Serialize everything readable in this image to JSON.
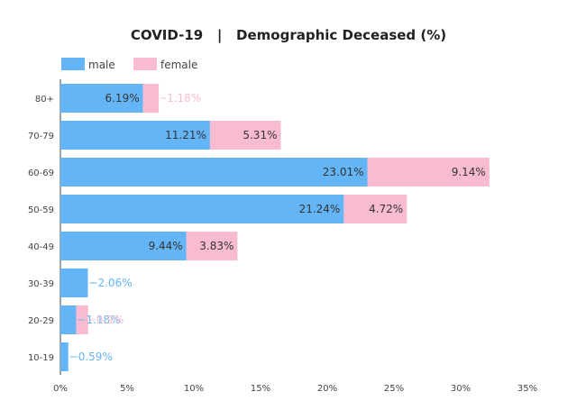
{
  "chart_data": {
    "type": "bar",
    "orientation": "horizontal",
    "stacked": true,
    "title": "COVID-19   |   Demographic Deceased (%)",
    "categories": [
      "80+",
      "70-79",
      "60-69",
      "50-59",
      "40-49",
      "30-39",
      "20-29",
      "10-19"
    ],
    "series": [
      {
        "name": "male",
        "color": "#64b5f6",
        "values": [
          6.19,
          11.21,
          23.01,
          21.24,
          9.44,
          2.06,
          1.18,
          0.59
        ],
        "labels": [
          "6.19%",
          "11.21%",
          "23.01%",
          "21.24%",
          "9.44%",
          "2.06%",
          "1.18%",
          "0.59%"
        ]
      },
      {
        "name": "female",
        "color": "#f8bbd0",
        "values": [
          1.18,
          5.31,
          9.14,
          4.72,
          3.83,
          0,
          0.9,
          0
        ],
        "labels": [
          "1.18%",
          "5.31%",
          "9.14%",
          "4.72%",
          "3.83%",
          "",
          "0.9%",
          ""
        ]
      }
    ],
    "xlim": [
      0,
      35
    ],
    "xticks": [
      "0%",
      "5%",
      "10%",
      "15%",
      "20%",
      "25%",
      "30%",
      "35%"
    ],
    "xtick_values": [
      0,
      5,
      10,
      15,
      20,
      25,
      30,
      35
    ],
    "grid": false,
    "legend": "top-left",
    "label_color_outside_male": "#64b5f6",
    "label_color_outside_female": "#f8bbd0"
  }
}
